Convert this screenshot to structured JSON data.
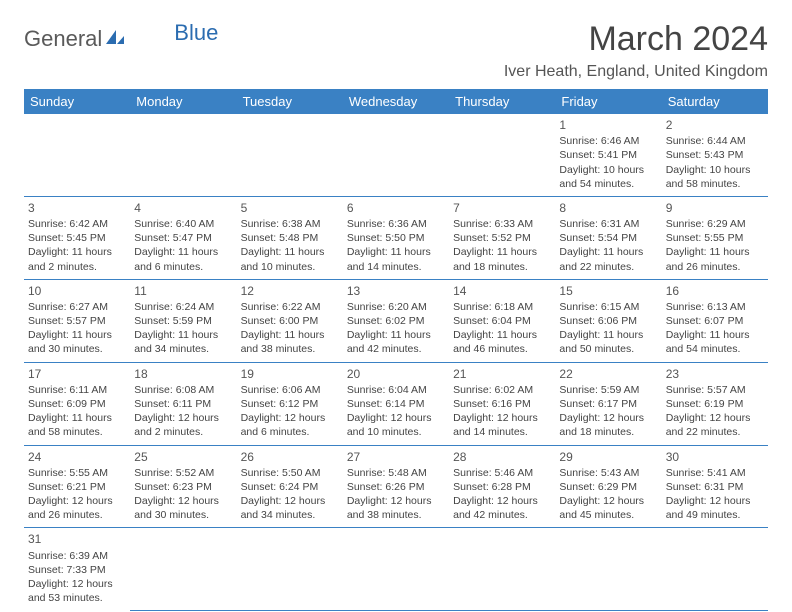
{
  "logo": {
    "text1": "General",
    "text2": "Blue"
  },
  "title": "March 2024",
  "location": "Iver Heath, England, United Kingdom",
  "colors": {
    "header_bg": "#3a81c4",
    "header_text": "#ffffff",
    "border": "#3a81c4",
    "logo_gray": "#5a5a5a",
    "logo_blue": "#2b6cb0",
    "body_text": "#444444",
    "background": "#ffffff"
  },
  "weekdays": [
    "Sunday",
    "Monday",
    "Tuesday",
    "Wednesday",
    "Thursday",
    "Friday",
    "Saturday"
  ],
  "weeks": [
    [
      null,
      null,
      null,
      null,
      null,
      {
        "n": "1",
        "sr": "Sunrise: 6:46 AM",
        "ss": "Sunset: 5:41 PM",
        "dl": "Daylight: 10 hours and 54 minutes."
      },
      {
        "n": "2",
        "sr": "Sunrise: 6:44 AM",
        "ss": "Sunset: 5:43 PM",
        "dl": "Daylight: 10 hours and 58 minutes."
      }
    ],
    [
      {
        "n": "3",
        "sr": "Sunrise: 6:42 AM",
        "ss": "Sunset: 5:45 PM",
        "dl": "Daylight: 11 hours and 2 minutes."
      },
      {
        "n": "4",
        "sr": "Sunrise: 6:40 AM",
        "ss": "Sunset: 5:47 PM",
        "dl": "Daylight: 11 hours and 6 minutes."
      },
      {
        "n": "5",
        "sr": "Sunrise: 6:38 AM",
        "ss": "Sunset: 5:48 PM",
        "dl": "Daylight: 11 hours and 10 minutes."
      },
      {
        "n": "6",
        "sr": "Sunrise: 6:36 AM",
        "ss": "Sunset: 5:50 PM",
        "dl": "Daylight: 11 hours and 14 minutes."
      },
      {
        "n": "7",
        "sr": "Sunrise: 6:33 AM",
        "ss": "Sunset: 5:52 PM",
        "dl": "Daylight: 11 hours and 18 minutes."
      },
      {
        "n": "8",
        "sr": "Sunrise: 6:31 AM",
        "ss": "Sunset: 5:54 PM",
        "dl": "Daylight: 11 hours and 22 minutes."
      },
      {
        "n": "9",
        "sr": "Sunrise: 6:29 AM",
        "ss": "Sunset: 5:55 PM",
        "dl": "Daylight: 11 hours and 26 minutes."
      }
    ],
    [
      {
        "n": "10",
        "sr": "Sunrise: 6:27 AM",
        "ss": "Sunset: 5:57 PM",
        "dl": "Daylight: 11 hours and 30 minutes."
      },
      {
        "n": "11",
        "sr": "Sunrise: 6:24 AM",
        "ss": "Sunset: 5:59 PM",
        "dl": "Daylight: 11 hours and 34 minutes."
      },
      {
        "n": "12",
        "sr": "Sunrise: 6:22 AM",
        "ss": "Sunset: 6:00 PM",
        "dl": "Daylight: 11 hours and 38 minutes."
      },
      {
        "n": "13",
        "sr": "Sunrise: 6:20 AM",
        "ss": "Sunset: 6:02 PM",
        "dl": "Daylight: 11 hours and 42 minutes."
      },
      {
        "n": "14",
        "sr": "Sunrise: 6:18 AM",
        "ss": "Sunset: 6:04 PM",
        "dl": "Daylight: 11 hours and 46 minutes."
      },
      {
        "n": "15",
        "sr": "Sunrise: 6:15 AM",
        "ss": "Sunset: 6:06 PM",
        "dl": "Daylight: 11 hours and 50 minutes."
      },
      {
        "n": "16",
        "sr": "Sunrise: 6:13 AM",
        "ss": "Sunset: 6:07 PM",
        "dl": "Daylight: 11 hours and 54 minutes."
      }
    ],
    [
      {
        "n": "17",
        "sr": "Sunrise: 6:11 AM",
        "ss": "Sunset: 6:09 PM",
        "dl": "Daylight: 11 hours and 58 minutes."
      },
      {
        "n": "18",
        "sr": "Sunrise: 6:08 AM",
        "ss": "Sunset: 6:11 PM",
        "dl": "Daylight: 12 hours and 2 minutes."
      },
      {
        "n": "19",
        "sr": "Sunrise: 6:06 AM",
        "ss": "Sunset: 6:12 PM",
        "dl": "Daylight: 12 hours and 6 minutes."
      },
      {
        "n": "20",
        "sr": "Sunrise: 6:04 AM",
        "ss": "Sunset: 6:14 PM",
        "dl": "Daylight: 12 hours and 10 minutes."
      },
      {
        "n": "21",
        "sr": "Sunrise: 6:02 AM",
        "ss": "Sunset: 6:16 PM",
        "dl": "Daylight: 12 hours and 14 minutes."
      },
      {
        "n": "22",
        "sr": "Sunrise: 5:59 AM",
        "ss": "Sunset: 6:17 PM",
        "dl": "Daylight: 12 hours and 18 minutes."
      },
      {
        "n": "23",
        "sr": "Sunrise: 5:57 AM",
        "ss": "Sunset: 6:19 PM",
        "dl": "Daylight: 12 hours and 22 minutes."
      }
    ],
    [
      {
        "n": "24",
        "sr": "Sunrise: 5:55 AM",
        "ss": "Sunset: 6:21 PM",
        "dl": "Daylight: 12 hours and 26 minutes."
      },
      {
        "n": "25",
        "sr": "Sunrise: 5:52 AM",
        "ss": "Sunset: 6:23 PM",
        "dl": "Daylight: 12 hours and 30 minutes."
      },
      {
        "n": "26",
        "sr": "Sunrise: 5:50 AM",
        "ss": "Sunset: 6:24 PM",
        "dl": "Daylight: 12 hours and 34 minutes."
      },
      {
        "n": "27",
        "sr": "Sunrise: 5:48 AM",
        "ss": "Sunset: 6:26 PM",
        "dl": "Daylight: 12 hours and 38 minutes."
      },
      {
        "n": "28",
        "sr": "Sunrise: 5:46 AM",
        "ss": "Sunset: 6:28 PM",
        "dl": "Daylight: 12 hours and 42 minutes."
      },
      {
        "n": "29",
        "sr": "Sunrise: 5:43 AM",
        "ss": "Sunset: 6:29 PM",
        "dl": "Daylight: 12 hours and 45 minutes."
      },
      {
        "n": "30",
        "sr": "Sunrise: 5:41 AM",
        "ss": "Sunset: 6:31 PM",
        "dl": "Daylight: 12 hours and 49 minutes."
      }
    ],
    [
      {
        "n": "31",
        "sr": "Sunrise: 6:39 AM",
        "ss": "Sunset: 7:33 PM",
        "dl": "Daylight: 12 hours and 53 minutes."
      },
      null,
      null,
      null,
      null,
      null,
      null
    ]
  ]
}
